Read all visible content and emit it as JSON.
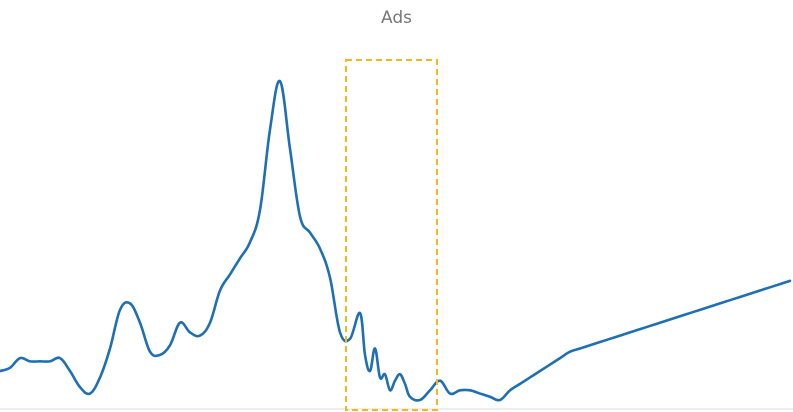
{
  "chart_data": {
    "type": "line",
    "title": "Ads",
    "xlabel": "",
    "ylabel": "",
    "ylim": [
      0,
      100
    ],
    "x": [
      0,
      10,
      20,
      30,
      40,
      50,
      60,
      70,
      80,
      90,
      100,
      110,
      120,
      130,
      140,
      150,
      160,
      170,
      180,
      190,
      200,
      210,
      220,
      230,
      240,
      250,
      260,
      270,
      280,
      290,
      300,
      310,
      320,
      330,
      340,
      350,
      360,
      365,
      370,
      375,
      380,
      385,
      390,
      395,
      400,
      405,
      410,
      420,
      430,
      440,
      450,
      460,
      470,
      480,
      490,
      500,
      510,
      520,
      530,
      540,
      550,
      560,
      570,
      580,
      590,
      600,
      610,
      620,
      630,
      640,
      650,
      660,
      670,
      680,
      690,
      700,
      710,
      720,
      730,
      740,
      750,
      760,
      770,
      780,
      790
    ],
    "series": [
      {
        "values": [
          9,
          10,
          13,
          12,
          12,
          12,
          13,
          9,
          4,
          2,
          7,
          16,
          28,
          30,
          24,
          15,
          14,
          17,
          24,
          21,
          20,
          24,
          34,
          39,
          44,
          49,
          59,
          84,
          99,
          78,
          57,
          52,
          47,
          38,
          21,
          19,
          27,
          14,
          9,
          16,
          7,
          8,
          3,
          6,
          8,
          5,
          1,
          0,
          3,
          6,
          2,
          3,
          3,
          2,
          1,
          0,
          3,
          5,
          7,
          9,
          11,
          13,
          15,
          16,
          17,
          18,
          19,
          20,
          21,
          22,
          23,
          24,
          25,
          26,
          27,
          28,
          29,
          30,
          31,
          32,
          33,
          34,
          35,
          36,
          37
        ]
      }
    ],
    "highlight": {
      "x_range": [
        346,
        437
      ],
      "color": "#f2b81e"
    },
    "line_color": "#1f6fb4",
    "axis_color": "#dddddd",
    "grid": false,
    "legend": "none"
  }
}
